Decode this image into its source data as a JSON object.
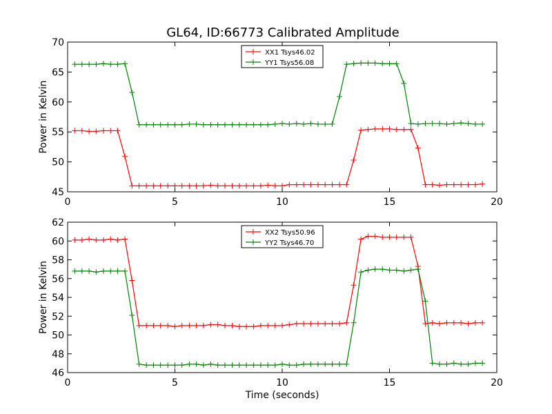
{
  "chart_data": [
    {
      "type": "line",
      "title": "GL64, ID:66773 Calibrated Amplitude",
      "xlabel": "",
      "ylabel": "Power in Kelvin",
      "xlim": [
        0,
        20
      ],
      "ylim": [
        45,
        70
      ],
      "xticks": [
        0,
        5,
        10,
        15,
        20
      ],
      "yticks": [
        45,
        50,
        55,
        60,
        65,
        70
      ],
      "legend_position": "top-center",
      "grid": false,
      "x": [
        0.33,
        0.67,
        1.0,
        1.33,
        1.67,
        2.0,
        2.33,
        2.67,
        3.0,
        3.33,
        3.67,
        4.0,
        4.33,
        4.67,
        5.0,
        5.33,
        5.67,
        6.0,
        6.33,
        6.67,
        7.0,
        7.33,
        7.67,
        8.0,
        8.33,
        8.67,
        9.0,
        9.33,
        9.67,
        10.0,
        10.33,
        10.67,
        11.0,
        11.33,
        11.67,
        12.0,
        12.33,
        12.67,
        13.0,
        13.33,
        13.67,
        14.0,
        14.33,
        14.67,
        15.0,
        15.33,
        15.67,
        16.0,
        16.33,
        16.67,
        17.0,
        17.33,
        17.67,
        18.0,
        18.33,
        18.67,
        19.0,
        19.33
      ],
      "series": [
        {
          "name": "XX1 Tsys46.02",
          "color": "#ff0000",
          "values": [
            55.2,
            55.2,
            55.1,
            55.1,
            55.2,
            55.2,
            55.2,
            50.9,
            46.0,
            46.0,
            46.0,
            46.0,
            46.0,
            46.0,
            46.0,
            46.0,
            46.0,
            46.0,
            46.0,
            46.1,
            46.0,
            46.0,
            46.0,
            46.0,
            46.0,
            46.0,
            46.0,
            46.1,
            46.0,
            46.0,
            46.2,
            46.2,
            46.2,
            46.2,
            46.2,
            46.2,
            46.2,
            46.2,
            46.2,
            50.3,
            55.3,
            55.4,
            55.5,
            55.5,
            55.5,
            55.4,
            55.4,
            55.4,
            52.3,
            46.2,
            46.2,
            46.1,
            46.2,
            46.2,
            46.2,
            46.2,
            46.2,
            46.3
          ]
        },
        {
          "name": "YY1 Tsys56.08",
          "color": "#008000",
          "values": [
            66.3,
            66.3,
            66.3,
            66.3,
            66.4,
            66.3,
            66.3,
            66.4,
            61.6,
            56.2,
            56.2,
            56.2,
            56.2,
            56.2,
            56.2,
            56.2,
            56.3,
            56.3,
            56.2,
            56.2,
            56.2,
            56.2,
            56.2,
            56.2,
            56.2,
            56.2,
            56.2,
            56.2,
            56.3,
            56.4,
            56.3,
            56.4,
            56.3,
            56.4,
            56.3,
            56.3,
            56.3,
            60.9,
            66.3,
            66.4,
            66.5,
            66.5,
            66.5,
            66.4,
            66.4,
            66.4,
            63.1,
            56.4,
            56.3,
            56.4,
            56.4,
            56.4,
            56.3,
            56.4,
            56.5,
            56.4,
            56.3,
            56.3
          ]
        }
      ]
    },
    {
      "type": "line",
      "title": "",
      "xlabel": "Time (seconds)",
      "ylabel": "Power in Kelvin",
      "xlim": [
        0,
        20
      ],
      "ylim": [
        46,
        62
      ],
      "xticks": [
        0,
        5,
        10,
        15,
        20
      ],
      "yticks": [
        46,
        48,
        50,
        52,
        54,
        56,
        58,
        60,
        62
      ],
      "legend_position": "top-center",
      "grid": false,
      "x": [
        0.33,
        0.67,
        1.0,
        1.33,
        1.67,
        2.0,
        2.33,
        2.67,
        3.0,
        3.33,
        3.67,
        4.0,
        4.33,
        4.67,
        5.0,
        5.33,
        5.67,
        6.0,
        6.33,
        6.67,
        7.0,
        7.33,
        7.67,
        8.0,
        8.33,
        8.67,
        9.0,
        9.33,
        9.67,
        10.0,
        10.33,
        10.67,
        11.0,
        11.33,
        11.67,
        12.0,
        12.33,
        12.67,
        13.0,
        13.33,
        13.67,
        14.0,
        14.33,
        14.67,
        15.0,
        15.33,
        15.67,
        16.0,
        16.33,
        16.67,
        17.0,
        17.33,
        17.67,
        18.0,
        18.33,
        18.67,
        19.0,
        19.33
      ],
      "series": [
        {
          "name": "XX2 Tsys50.96",
          "color": "#ff0000",
          "values": [
            60.1,
            60.1,
            60.2,
            60.1,
            60.1,
            60.2,
            60.1,
            60.2,
            55.8,
            51.0,
            51.0,
            51.0,
            51.0,
            51.0,
            50.9,
            51.0,
            51.0,
            51.0,
            51.0,
            51.1,
            51.1,
            51.0,
            51.0,
            50.9,
            50.9,
            50.9,
            51.0,
            51.0,
            51.0,
            51.0,
            51.1,
            51.2,
            51.2,
            51.2,
            51.2,
            51.2,
            51.2,
            51.2,
            51.3,
            55.3,
            60.2,
            60.5,
            60.5,
            60.4,
            60.4,
            60.4,
            60.4,
            60.4,
            57.3,
            51.2,
            51.3,
            51.2,
            51.3,
            51.3,
            51.3,
            51.2,
            51.3,
            51.3
          ]
        },
        {
          "name": "YY2 Tsys46.70",
          "color": "#008000",
          "values": [
            56.8,
            56.8,
            56.8,
            56.7,
            56.8,
            56.8,
            56.8,
            56.8,
            52.1,
            46.9,
            46.8,
            46.8,
            46.8,
            46.8,
            46.8,
            46.8,
            46.9,
            46.9,
            46.8,
            46.9,
            46.8,
            46.8,
            46.8,
            46.8,
            46.8,
            46.8,
            46.8,
            46.8,
            46.8,
            46.9,
            46.8,
            46.8,
            46.9,
            46.9,
            46.9,
            46.9,
            46.9,
            46.9,
            46.9,
            51.3,
            56.7,
            56.9,
            57.0,
            57.0,
            56.9,
            56.9,
            56.8,
            56.9,
            57.0,
            53.6,
            47.0,
            46.9,
            46.9,
            47.0,
            46.9,
            46.9,
            47.0,
            47.0
          ]
        }
      ]
    }
  ]
}
